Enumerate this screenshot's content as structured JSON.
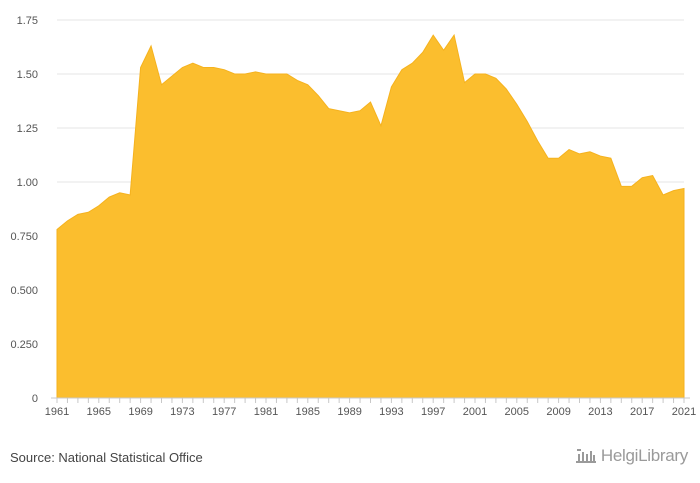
{
  "chart_data": {
    "type": "area",
    "title": "",
    "xlabel": "",
    "ylabel": "",
    "color": "#FBBE2E",
    "ylim": [
      0,
      1.75
    ],
    "yticks": [
      0,
      0.25,
      0.5,
      0.75,
      1.0,
      1.25,
      1.5,
      1.75
    ],
    "ytick_labels": [
      "0",
      "0.250",
      "0.500",
      "0.750",
      "1.00",
      "1.25",
      "1.50",
      "1.75"
    ],
    "xlim": [
      1961,
      2021
    ],
    "xticks": [
      1961,
      1965,
      1969,
      1973,
      1977,
      1981,
      1985,
      1989,
      1993,
      1997,
      2001,
      2005,
      2009,
      2013,
      2017,
      2021
    ],
    "x": [
      1961,
      1962,
      1963,
      1964,
      1965,
      1966,
      1967,
      1968,
      1969,
      1970,
      1971,
      1972,
      1973,
      1974,
      1975,
      1976,
      1977,
      1978,
      1979,
      1980,
      1981,
      1982,
      1983,
      1984,
      1985,
      1986,
      1987,
      1988,
      1989,
      1990,
      1991,
      1992,
      1993,
      1994,
      1995,
      1996,
      1997,
      1998,
      1999,
      2000,
      2001,
      2002,
      2003,
      2004,
      2005,
      2006,
      2007,
      2008,
      2009,
      2010,
      2011,
      2012,
      2013,
      2014,
      2015,
      2016,
      2017,
      2018,
      2019,
      2020,
      2021
    ],
    "values": [
      0.78,
      0.82,
      0.85,
      0.86,
      0.89,
      0.93,
      0.95,
      0.94,
      1.53,
      1.63,
      1.45,
      1.49,
      1.53,
      1.55,
      1.53,
      1.53,
      1.52,
      1.5,
      1.5,
      1.51,
      1.5,
      1.5,
      1.5,
      1.47,
      1.45,
      1.4,
      1.34,
      1.33,
      1.32,
      1.33,
      1.37,
      1.26,
      1.44,
      1.52,
      1.55,
      1.6,
      1.68,
      1.61,
      1.68,
      1.46,
      1.5,
      1.5,
      1.48,
      1.43,
      1.36,
      1.28,
      1.19,
      1.11,
      1.11,
      1.15,
      1.13,
      1.14,
      1.12,
      1.11,
      0.98,
      0.98,
      1.02,
      1.03,
      0.94,
      0.96,
      0.97
    ]
  },
  "footer": {
    "source": "Source: National Statistical Office",
    "brand": "HelgiLibrary"
  },
  "brand_icon": "building-icon",
  "brand_color": "#9a9a9a"
}
